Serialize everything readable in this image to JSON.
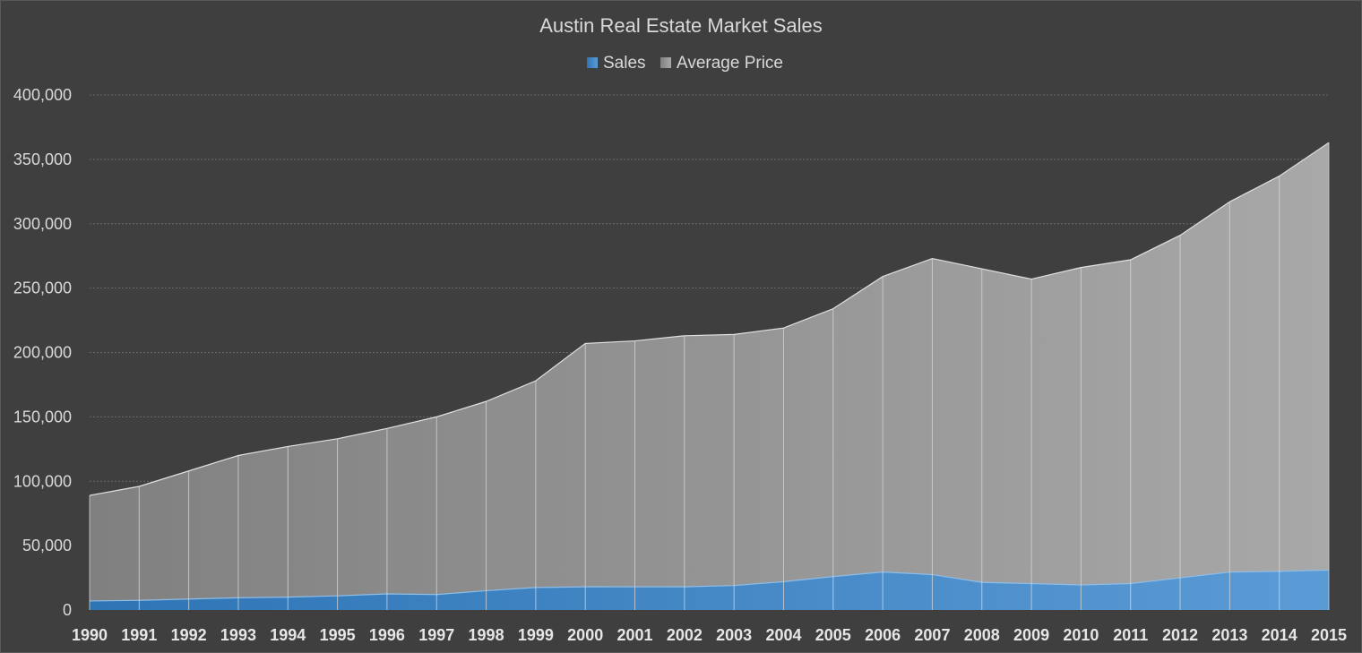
{
  "chart_data": {
    "type": "area",
    "title": "Austin Real Estate Market Sales",
    "xlabel": "",
    "ylabel": "",
    "ylim": [
      0,
      400000
    ],
    "ytick_values": [
      0,
      50000,
      100000,
      150000,
      200000,
      250000,
      300000,
      350000,
      400000
    ],
    "ytick_labels": [
      "0",
      "50,000",
      "100,000",
      "150,000",
      "200,000",
      "250,000",
      "300,000",
      "350,000",
      "400,000"
    ],
    "categories": [
      "1990",
      "1991",
      "1992",
      "1993",
      "1994",
      "1995",
      "1996",
      "1997",
      "1998",
      "1999",
      "2000",
      "2001",
      "2002",
      "2003",
      "2004",
      "2005",
      "2006",
      "2007",
      "2008",
      "2009",
      "2010",
      "2011",
      "2012",
      "2013",
      "2014",
      "2015"
    ],
    "grid": true,
    "legend_position": "top-center",
    "series": [
      {
        "name": "Sales",
        "color": "#5b9bd5",
        "values": [
          7000,
          7500,
          8500,
          9500,
          10000,
          11000,
          12500,
          12000,
          15000,
          17500,
          18000,
          18000,
          18000,
          19000,
          22000,
          26000,
          29500,
          27500,
          21500,
          20500,
          19500,
          20500,
          25000,
          29500,
          30000,
          31000
        ]
      },
      {
        "name": "Average Price",
        "color": "#a5a5a5",
        "values": [
          89000,
          96000,
          108000,
          120000,
          127000,
          133000,
          141000,
          150000,
          162000,
          178000,
          207000,
          209000,
          213000,
          214000,
          219000,
          234000,
          259000,
          273000,
          265000,
          257000,
          266000,
          272000,
          291000,
          317000,
          337000,
          363000
        ]
      }
    ]
  }
}
